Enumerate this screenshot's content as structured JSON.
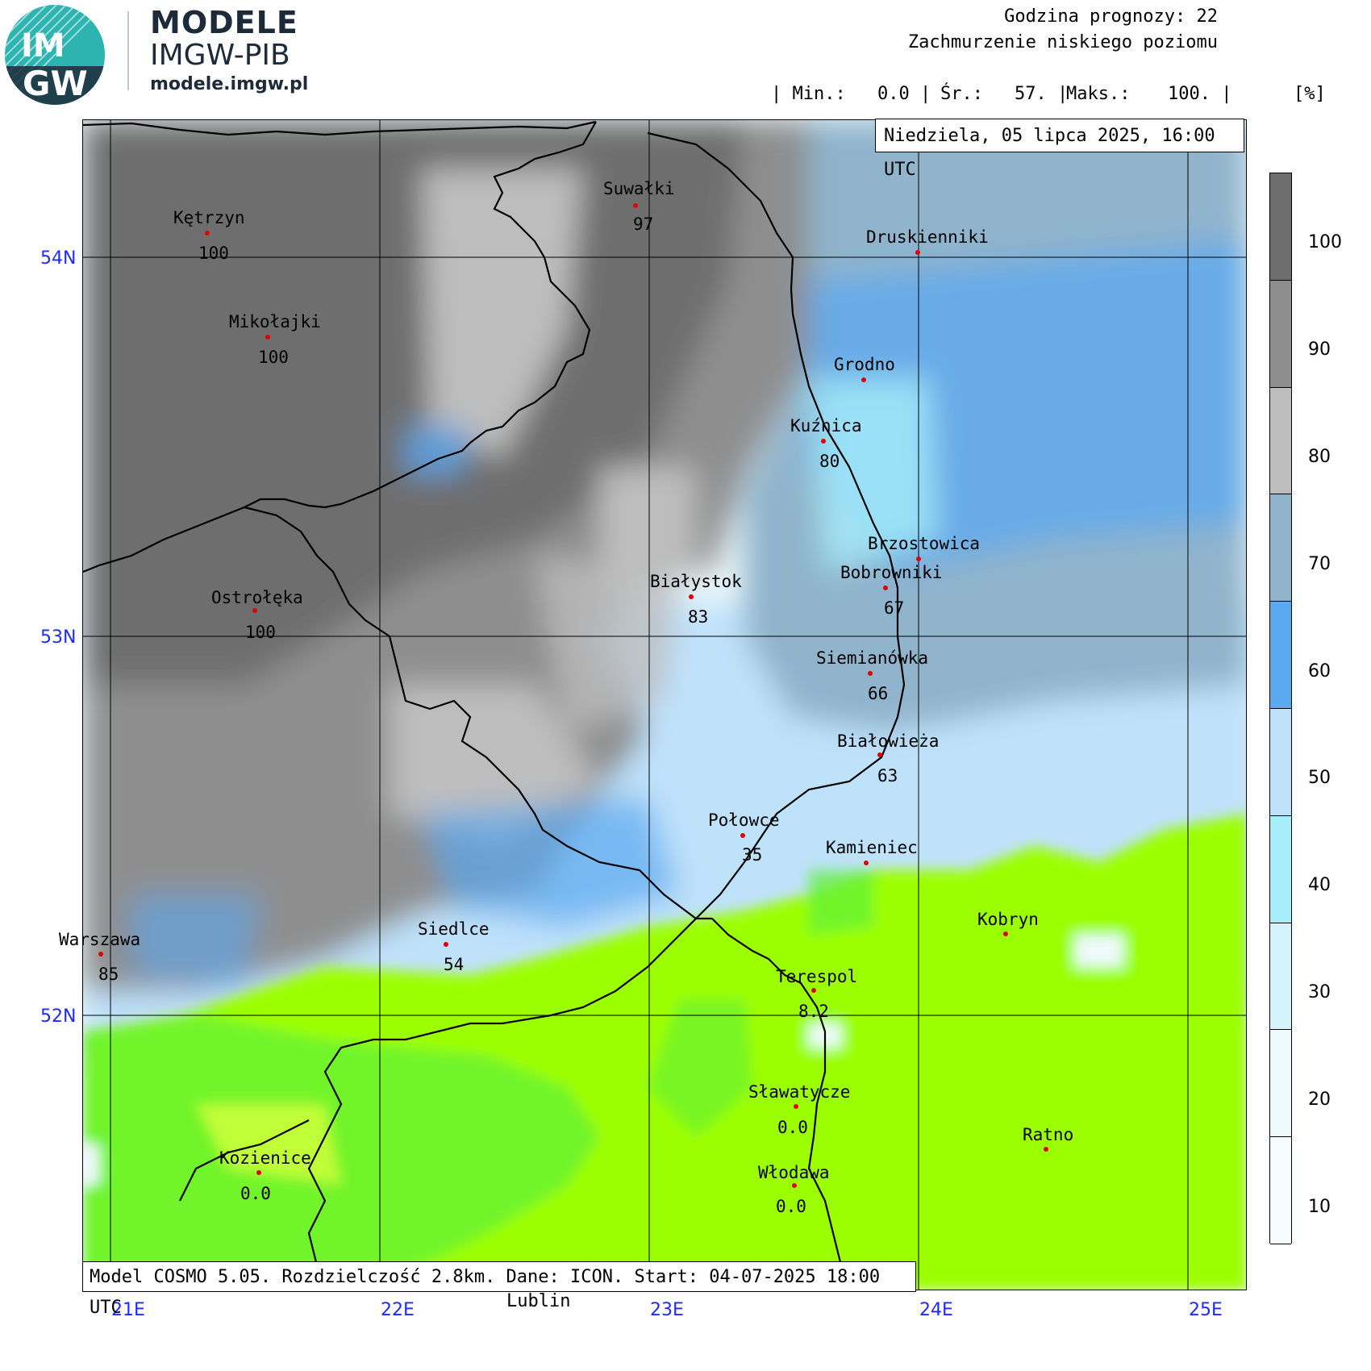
{
  "brand": {
    "logo_text_top": "IM",
    "logo_text_bottom": "GW",
    "title": "MODELE",
    "subtitle": "IMGW-PIB",
    "url": "modele.imgw.pl"
  },
  "header": {
    "forecast_hour": "Godzina prognozy: 22",
    "variable": "Zachmurzenie niskiego poziomu",
    "stats": {
      "min_label": "| Min.:",
      "min_value": "0.0 |",
      "mean_label": "Śr.:",
      "mean_value": "57. |",
      "max_label": "Maks.:",
      "max_value": "100. |"
    },
    "unit": "[%]",
    "date": "Niedziela, 05 lipca 2025, 16:00 UTC"
  },
  "map": {
    "latitudes": [
      "54N",
      "53N",
      "52N"
    ],
    "longitudes": [
      "21E",
      "22E",
      "23E",
      "24E",
      "25E"
    ],
    "model_info": "Model COSMO 5.05. Rozdzielczość 2.8km. Dane: ICON. Start: 04-07-2025 18:00 UTC",
    "below_map_city": "Lublin",
    "cities": [
      {
        "name": "Suwałki",
        "value": "97"
      },
      {
        "name": "Kętrzyn",
        "value": "100"
      },
      {
        "name": "Druskienniki",
        "value": ""
      },
      {
        "name": "Mikołajki",
        "value": "100"
      },
      {
        "name": "Grodno",
        "value": ""
      },
      {
        "name": "Kuźnica",
        "value": "80"
      },
      {
        "name": "Brzostowica",
        "value": ""
      },
      {
        "name": "Bobrowniki",
        "value": "67"
      },
      {
        "name": "Białystok",
        "value": "83"
      },
      {
        "name": "Ostrołęka",
        "value": "100"
      },
      {
        "name": "Siemianówka",
        "value": "66"
      },
      {
        "name": "Białowieża",
        "value": "63"
      },
      {
        "name": "Połowce",
        "value": "35"
      },
      {
        "name": "Kamieniec",
        "value": ""
      },
      {
        "name": "Warszawa",
        "value": "85"
      },
      {
        "name": "Siedlce",
        "value": "54"
      },
      {
        "name": "Kobryn",
        "value": ""
      },
      {
        "name": "Terespol",
        "value": "8.2"
      },
      {
        "name": "Sławatycze",
        "value": "0.0"
      },
      {
        "name": "Ratno",
        "value": ""
      },
      {
        "name": "Kozienice",
        "value": "0.0"
      },
      {
        "name": "Włodawa",
        "value": "0.0"
      }
    ]
  },
  "legend": {
    "labels": [
      "100",
      "90",
      "80",
      "70",
      "60",
      "50",
      "40",
      "30",
      "20",
      "10"
    ],
    "colors": [
      "#6e6e6e",
      "#8e8e8e",
      "#bdbdbd",
      "#8fb4cc",
      "#5aa8f0",
      "#bfe2fb",
      "#a8eefa",
      "#d4f3fb",
      "#eef9fb",
      "#f7fcfd"
    ]
  },
  "colors": {
    "coord_text": "#1e2bff",
    "city_dot": "#e00000",
    "rain_free_green": "#9cff00"
  }
}
